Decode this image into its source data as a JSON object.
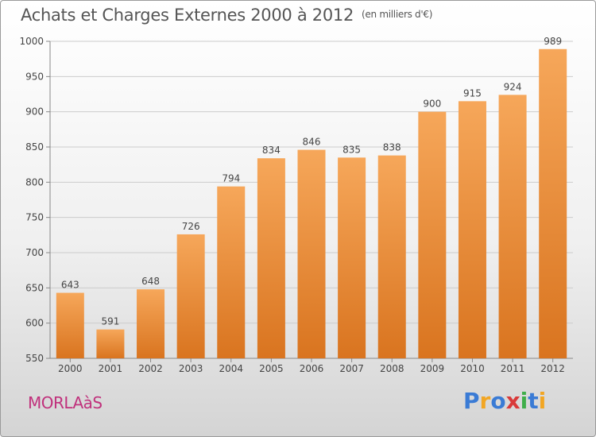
{
  "title": "Achats et Charges Externes 2000 à 2012",
  "unit": "(en milliers d'€)",
  "city": "MORLAàS",
  "logo": {
    "text": "Proxiti",
    "colors": [
      "#3a7bd5",
      "#f2a623",
      "#3a7bd5",
      "#d93a3a",
      "#3fae49",
      "#3a7bd5",
      "#f2a623"
    ]
  },
  "colors": {
    "bar_light": "#f6a75a",
    "bar_dark": "#d9741f",
    "grid": "#cccccc",
    "text": "#444444",
    "city": "#c0317c"
  },
  "chart_data": {
    "type": "bar",
    "title": "Achats et Charges Externes 2000 à 2012",
    "subtitle": "(en milliers d'€)",
    "categories": [
      "2000",
      "2001",
      "2002",
      "2003",
      "2004",
      "2005",
      "2006",
      "2007",
      "2008",
      "2009",
      "2010",
      "2011",
      "2012"
    ],
    "values": [
      643,
      591,
      648,
      726,
      794,
      834,
      846,
      835,
      838,
      900,
      915,
      924,
      989
    ],
    "ylim": [
      550,
      1000
    ],
    "yticks": [
      550,
      600,
      650,
      700,
      750,
      800,
      850,
      900,
      950,
      1000
    ],
    "grid": true,
    "xlabel": "",
    "ylabel": ""
  }
}
